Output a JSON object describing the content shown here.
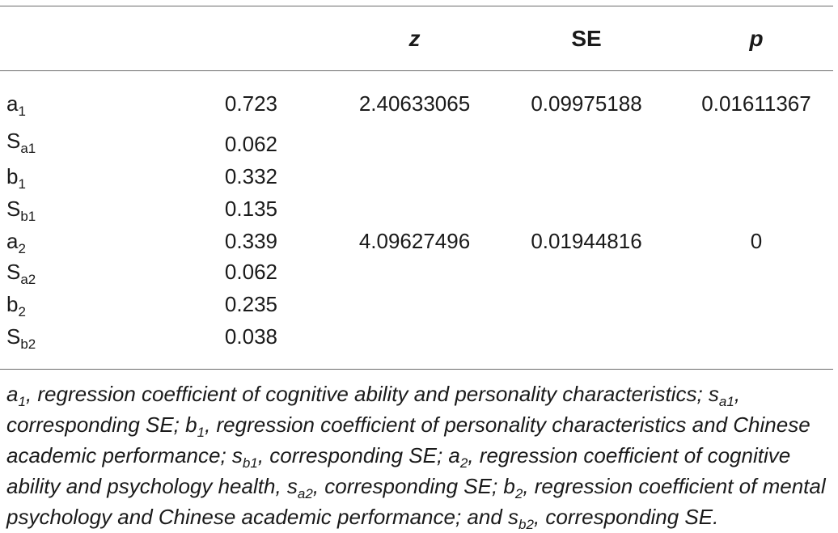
{
  "table": {
    "headers": {
      "stub": "",
      "value": "",
      "z": "z",
      "se": "SE",
      "p": "p"
    },
    "rows": [
      {
        "label_base": "a",
        "label_sub": "1",
        "value": "0.723",
        "z": "2.40633065",
        "se": "0.09975188",
        "p": "0.01611367"
      },
      {
        "label_base": "S",
        "label_sub": "a1",
        "value": "0.062",
        "z": "",
        "se": "",
        "p": ""
      },
      {
        "label_base": "b",
        "label_sub": "1",
        "value": "0.332",
        "z": "",
        "se": "",
        "p": ""
      },
      {
        "label_base": "S",
        "label_sub": "b1",
        "value": "0.135",
        "z": "",
        "se": "",
        "p": ""
      },
      {
        "label_base": "a",
        "label_sub": "2",
        "value": "0.339",
        "z": "4.09627496",
        "se": "0.01944816",
        "p": "0"
      },
      {
        "label_base": "S",
        "label_sub": "a2",
        "value": "0.062",
        "z": "",
        "se": "",
        "p": ""
      },
      {
        "label_base": "b",
        "label_sub": "2",
        "value": "0.235",
        "z": "",
        "se": "",
        "p": ""
      },
      {
        "label_base": "S",
        "label_sub": "b2",
        "value": "0.038",
        "z": "",
        "se": "",
        "p": ""
      }
    ]
  },
  "footnote": {
    "lines": [
      [
        {
          "t": "a"
        },
        {
          "s": "1"
        },
        {
          "t": ", regression coefficient of cognitive ability and personality characteristics; s"
        },
        {
          "s": "a1"
        },
        {
          "t": ","
        }
      ],
      [
        {
          "t": "corresponding SE; b"
        },
        {
          "s": "1"
        },
        {
          "t": ", regression coefficient of personality characteristics and Chinese"
        }
      ],
      [
        {
          "t": "academic performance; s"
        },
        {
          "s": "b1"
        },
        {
          "t": ", corresponding SE; a"
        },
        {
          "s": "2"
        },
        {
          "t": ", regression coefficient of cognitive"
        }
      ],
      [
        {
          "t": "ability and psychology health, s"
        },
        {
          "s": "a2"
        },
        {
          "t": ", corresponding SE; b"
        },
        {
          "s": "2"
        },
        {
          "t": ", regression coefficient of mental"
        }
      ],
      [
        {
          "t": "psychology and Chinese academic performance; and s"
        },
        {
          "s": "b2"
        },
        {
          "t": ", corresponding SE."
        }
      ]
    ]
  }
}
